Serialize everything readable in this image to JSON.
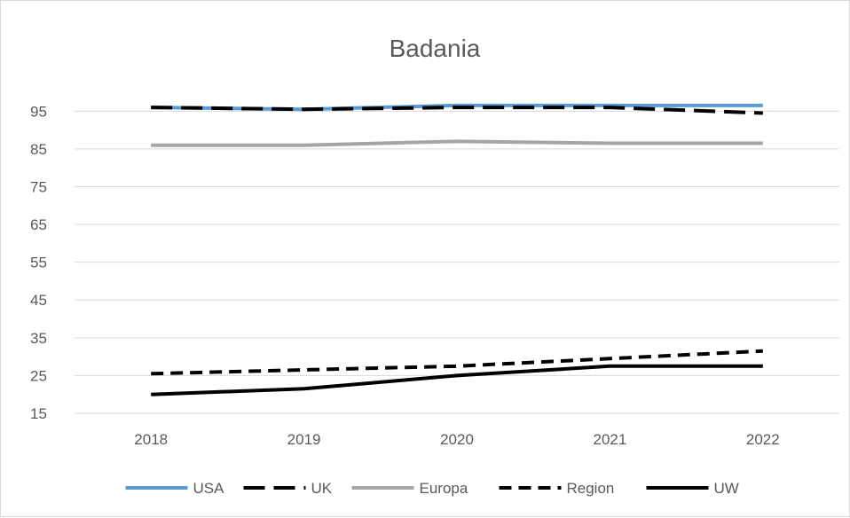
{
  "chart_data": {
    "type": "line",
    "title": "Badania",
    "xlabel": "",
    "ylabel": "",
    "categories": [
      "2018",
      "2019",
      "2020",
      "2021",
      "2022"
    ],
    "y_ticks": [
      15,
      25,
      35,
      45,
      55,
      65,
      75,
      85,
      95
    ],
    "ylim": [
      15,
      104
    ],
    "grid": "horizontal",
    "legend_position": "bottom",
    "series": [
      {
        "name": "USA",
        "values": [
          96,
          95.5,
          96.5,
          96.5,
          96.5
        ],
        "color": "#5b9bd5",
        "dash": "solid",
        "width": 4
      },
      {
        "name": "UK",
        "values": [
          96,
          95.5,
          96,
          96,
          94.5
        ],
        "color": "#000000",
        "dash": "longdash",
        "width": 4
      },
      {
        "name": "Europa",
        "values": [
          86,
          86,
          87,
          86.5,
          86.5
        ],
        "color": "#a5a5a5",
        "dash": "solid",
        "width": 4
      },
      {
        "name": "Region",
        "values": [
          25.5,
          26.5,
          27.5,
          29.5,
          31.5
        ],
        "color": "#000000",
        "dash": "dash",
        "width": 4
      },
      {
        "name": "UW",
        "values": [
          20,
          21.5,
          25,
          27.5,
          27.5
        ],
        "color": "#000000",
        "dash": "solid",
        "width": 4
      }
    ]
  }
}
